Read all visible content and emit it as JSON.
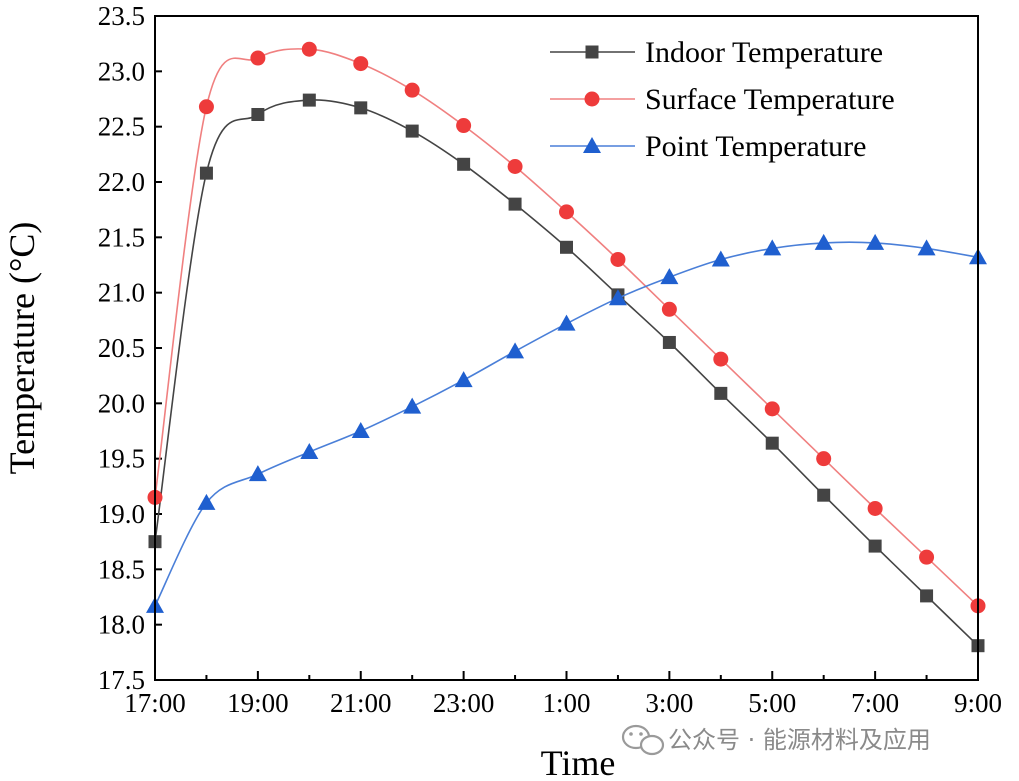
{
  "chart_data": {
    "type": "line",
    "title": "",
    "xlabel": "Time",
    "ylabel": "Temperature (°C)",
    "ylim": [
      17.5,
      23.5
    ],
    "y_ticks": [
      "17.5",
      "18.0",
      "18.5",
      "19.0",
      "19.5",
      "20.0",
      "20.5",
      "21.0",
      "21.5",
      "22.0",
      "22.5",
      "23.0",
      "23.5"
    ],
    "x_ticks": [
      "17:00",
      "19:00",
      "21:00",
      "23:00",
      "1:00",
      "3:00",
      "5:00",
      "7:00",
      "9:00"
    ],
    "categories": [
      "17:00",
      "18:00",
      "19:00",
      "20:00",
      "21:00",
      "22:00",
      "23:00",
      "0:00",
      "1:00",
      "2:00",
      "3:00",
      "4:00",
      "5:00",
      "6:00",
      "7:00",
      "8:00",
      "9:00"
    ],
    "legend_position": "top-right",
    "series": [
      {
        "name": "Indoor Temperature",
        "marker": "square",
        "color": "#444444",
        "line_color": "#444444",
        "values": [
          18.75,
          22.08,
          22.61,
          22.74,
          22.67,
          22.46,
          22.16,
          21.8,
          21.41,
          20.98,
          20.55,
          20.09,
          19.64,
          19.17,
          18.71,
          18.26,
          17.81
        ]
      },
      {
        "name": "Surface Temperature",
        "marker": "circle",
        "color": "#ee3b3b",
        "line_color": "#f08080",
        "values": [
          19.15,
          22.68,
          23.12,
          23.2,
          23.07,
          22.83,
          22.51,
          22.14,
          21.73,
          21.3,
          20.85,
          20.4,
          19.95,
          19.5,
          19.05,
          18.61,
          18.17
        ]
      },
      {
        "name": "Point Temperature",
        "marker": "triangle",
        "color": "#1f5fcf",
        "line_color": "#4a7fd8",
        "values": [
          18.17,
          19.1,
          19.36,
          19.56,
          19.75,
          19.97,
          20.21,
          20.47,
          20.72,
          20.95,
          21.14,
          21.3,
          21.4,
          21.45,
          21.45,
          21.4,
          21.32
        ]
      }
    ]
  },
  "watermark": {
    "icon": "wechat-icon",
    "text": "公众号 · 能源材料及应用"
  }
}
